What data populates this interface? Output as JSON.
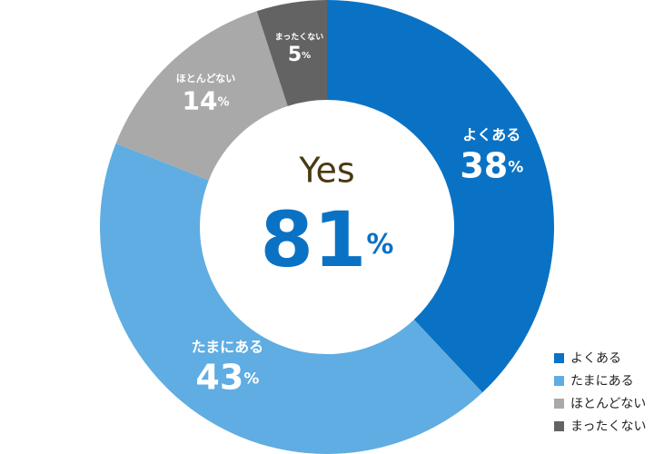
{
  "chart_data": {
    "type": "donut",
    "categories": [
      "よくある",
      "たまにある",
      "ほとんどない",
      "まったくない"
    ],
    "values": [
      38,
      43,
      14,
      5
    ],
    "value_labels": [
      "38%",
      "43%",
      "14%",
      "5%"
    ],
    "colors": [
      "#0a72c4",
      "#5fade2",
      "#a9a9a9",
      "#636363"
    ],
    "center": {
      "label": "Yes",
      "value": 81,
      "value_label": "81%"
    },
    "legend": "bottom-right"
  }
}
